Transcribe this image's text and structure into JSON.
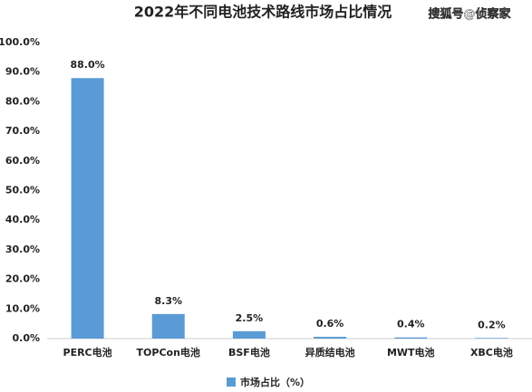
{
  "chart_data": {
    "type": "bar",
    "title": "2022年不同电池技术路线市场占比情况",
    "annotation": "搜狐号@侦察家",
    "categories": [
      "PERC电池",
      "TOPCon电池",
      "BSF电池",
      "异质结电池",
      "MWT电池",
      "XBC电池"
    ],
    "series": [
      {
        "name": "市场占比（%）",
        "color": "#5b9bd5",
        "values": [
          88.0,
          8.3,
          2.5,
          0.6,
          0.4,
          0.2
        ],
        "value_labels": [
          "88.0%",
          "8.3%",
          "2.5%",
          "0.6%",
          "0.4%",
          "0.2%"
        ]
      }
    ],
    "ylim": [
      0,
      100
    ],
    "yticks": [
      {
        "value": 0,
        "label": "0.0%"
      },
      {
        "value": 10,
        "label": "10.0%"
      },
      {
        "value": 20,
        "label": "20.0%"
      },
      {
        "value": 30,
        "label": "30.0%"
      },
      {
        "value": 40,
        "label": "40.0%"
      },
      {
        "value": 50,
        "label": "50.0%"
      },
      {
        "value": 60,
        "label": "60.0%"
      },
      {
        "value": 70,
        "label": "70.0%"
      },
      {
        "value": 80,
        "label": "80.0%"
      },
      {
        "value": 90,
        "label": "90.0%"
      },
      {
        "value": 100,
        "label": "100.0%"
      }
    ],
    "grid": false
  }
}
